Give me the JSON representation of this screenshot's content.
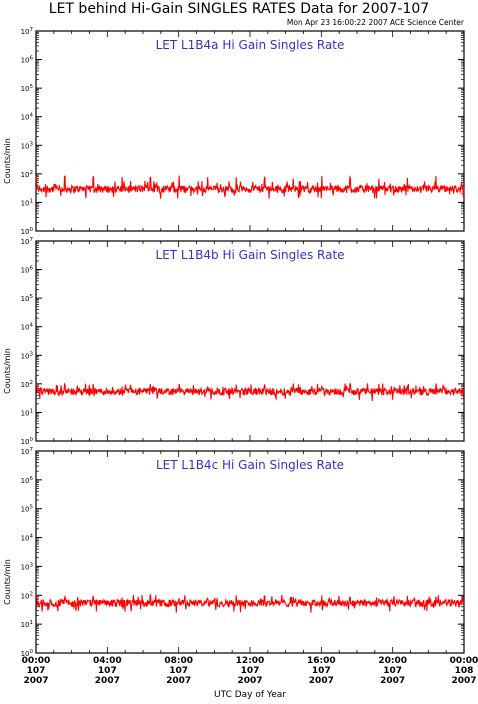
{
  "title": "LET behind Hi-Gain SINGLES RATES Data for 2007-107",
  "timestamp": "Mon Apr 23 16:00:22 2007 ACE Science Center",
  "xlabel": "UTC Day of Year",
  "colors": {
    "series": "#ff0000",
    "panel_title": "#3333cc",
    "axis": "#000000"
  },
  "x_ticks": [
    {
      "time": "00:00",
      "doy": "107",
      "year": "2007"
    },
    {
      "time": "04:00",
      "doy": "107",
      "year": "2007"
    },
    {
      "time": "08:00",
      "doy": "107",
      "year": "2007"
    },
    {
      "time": "12:00",
      "doy": "107",
      "year": "2007"
    },
    {
      "time": "16:00",
      "doy": "107",
      "year": "2007"
    },
    {
      "time": "20:00",
      "doy": "107",
      "year": "2007"
    },
    {
      "time": "00:00",
      "doy": "108",
      "year": "2007"
    }
  ],
  "chart_data": [
    {
      "type": "line",
      "title": "LET L1B4a Hi Gain Singles Rate",
      "ylabel": "Counts/min",
      "yscale": "log",
      "ylim": [
        1,
        10000000
      ],
      "xlim_hours": [
        0,
        24
      ],
      "series": [
        {
          "baseline": 30,
          "spike_peak": 80,
          "spike_interval_hours": 1.6,
          "color": "#ff0000"
        }
      ]
    },
    {
      "type": "line",
      "title": "LET L1B4b Hi Gain Singles Rate",
      "ylabel": "Counts/min",
      "yscale": "log",
      "ylim": [
        1,
        10000000
      ],
      "xlim_hours": [
        0,
        24
      ],
      "series": [
        {
          "baseline": 55,
          "spike_peak": 95,
          "spike_interval_hours": 1.6,
          "color": "#ff0000"
        }
      ]
    },
    {
      "type": "line",
      "title": "LET L1B4c Hi Gain Singles Rate",
      "ylabel": "Counts/min",
      "yscale": "log",
      "ylim": [
        1,
        10000000
      ],
      "xlim_hours": [
        0,
        24
      ],
      "series": [
        {
          "baseline": 55,
          "spike_peak": 95,
          "spike_interval_hours": 1.6,
          "color": "#ff0000"
        }
      ]
    }
  ]
}
